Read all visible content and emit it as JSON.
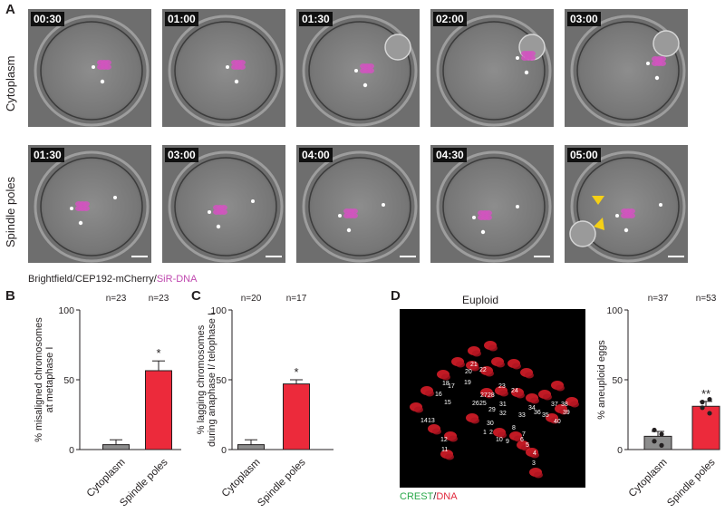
{
  "panels": {
    "A": {
      "letter": "A",
      "rows": [
        {
          "label": "Cytoplasm",
          "timestamps": [
            "00:30",
            "01:00",
            "01:30",
            "02:00",
            "03:00"
          ]
        },
        {
          "label": "Spindle poles",
          "timestamps": [
            "01:30",
            "03:00",
            "04:00",
            "04:30",
            "05:00"
          ]
        }
      ],
      "stain_caption": {
        "part1": "Brightfield/CEP192-mCherry/",
        "part2": "SiR-DNA"
      }
    },
    "B": {
      "letter": "B"
    },
    "C": {
      "letter": "C"
    },
    "D": {
      "letter": "D",
      "image_title": "Euploid",
      "stain_caption": {
        "part1": "CREST",
        "sep": "/",
        "part2": "DNA"
      },
      "kinetochore_labels": [
        "1",
        "2",
        "3",
        "4",
        "5",
        "6",
        "7",
        "8",
        "9",
        "10",
        "11",
        "12",
        "13",
        "14",
        "15",
        "16",
        "17",
        "18",
        "19",
        "20",
        "21",
        "22",
        "23",
        "24",
        "25",
        "26",
        "27",
        "28",
        "29",
        "30",
        "31",
        "32",
        "33",
        "34",
        "35",
        "36",
        "37",
        "38",
        "39",
        "40"
      ]
    }
  },
  "chart_data": [
    {
      "type": "bar",
      "panel": "B",
      "ylabel": "% misaligned chromosomes\nat metaphase I",
      "categories": [
        "Cytoplasm",
        "Spindle poles"
      ],
      "values": [
        3.5,
        56.5
      ],
      "errors": [
        3.5,
        7
      ],
      "n_labels": [
        "n=23",
        "n=23"
      ],
      "significance": [
        "",
        "*"
      ],
      "ylim": [
        0,
        100
      ],
      "yticks": [
        "0",
        "50",
        "100"
      ],
      "colors": [
        "#8c8c8c",
        "#ec2a3b"
      ]
    },
    {
      "type": "bar",
      "panel": "C",
      "ylabel": "% lagging chromosomes\nduring anaphase I/ telophase I",
      "categories": [
        "Cytoplasm",
        "Spindle poles"
      ],
      "values": [
        3.5,
        47
      ],
      "errors": [
        3.5,
        3
      ],
      "n_labels": [
        "n=20",
        "n=17"
      ],
      "significance": [
        "",
        "*"
      ],
      "ylim": [
        0,
        100
      ],
      "yticks": [
        "0",
        "50",
        "100"
      ],
      "colors": [
        "#8c8c8c",
        "#ec2a3b"
      ]
    },
    {
      "type": "bar",
      "panel": "D",
      "ylabel": "% aneuploid eggs",
      "categories": [
        "Cytoplasm",
        "Spindle poles"
      ],
      "values": [
        9.5,
        31
      ],
      "errors": [
        3.5,
        3.5
      ],
      "points": [
        [
          14,
          11,
          6,
          3
        ],
        [
          34,
          36,
          30,
          26
        ]
      ],
      "n_labels": [
        "n=37",
        "n=53"
      ],
      "significance": [
        "",
        "**"
      ],
      "ylim": [
        0,
        100
      ],
      "yticks": [
        "0",
        "50",
        "100"
      ],
      "colors": [
        "#8c8c8c",
        "#ec2a3b"
      ]
    }
  ]
}
